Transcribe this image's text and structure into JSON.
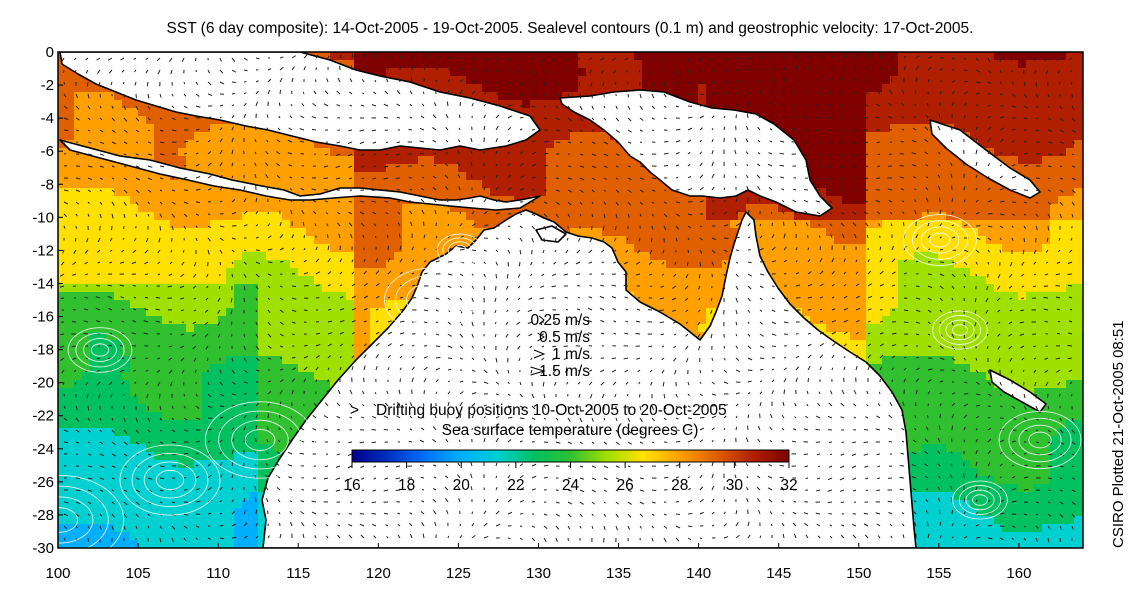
{
  "title": "SST (6 day composite): 14-Oct-2005 - 19-Oct-2005. Sealevel contours (0.1 m) and geostrophic velocity: 17-Oct-2005.",
  "credit": "CSIRO Plotted 21-Oct-2005 08:51",
  "map": {
    "lon_range": [
      100,
      164
    ],
    "lat_range": [
      -30,
      0
    ],
    "x_ticks": [
      {
        "value": 100,
        "label": "100"
      },
      {
        "value": 105,
        "label": "105"
      },
      {
        "value": 110,
        "label": "110"
      },
      {
        "value": 115,
        "label": "115"
      },
      {
        "value": 120,
        "label": "120"
      },
      {
        "value": 125,
        "label": "125"
      },
      {
        "value": 130,
        "label": "130"
      },
      {
        "value": 135,
        "label": "135"
      },
      {
        "value": 140,
        "label": "140"
      },
      {
        "value": 145,
        "label": "145"
      },
      {
        "value": 150,
        "label": "150"
      },
      {
        "value": 155,
        "label": "155"
      },
      {
        "value": 160,
        "label": "160"
      }
    ],
    "y_ticks": [
      {
        "value": 0,
        "label": "0"
      },
      {
        "value": -2,
        "label": "-2"
      },
      {
        "value": -4,
        "label": "-4"
      },
      {
        "value": -6,
        "label": "-6"
      },
      {
        "value": -8,
        "label": "-8"
      },
      {
        "value": -10,
        "label": "-10"
      },
      {
        "value": -12,
        "label": "-12"
      },
      {
        "value": -14,
        "label": "-14"
      },
      {
        "value": -16,
        "label": "-16"
      },
      {
        "value": -18,
        "label": "-18"
      },
      {
        "value": -20,
        "label": "-20"
      },
      {
        "value": -22,
        "label": "-22"
      },
      {
        "value": -24,
        "label": "-24"
      },
      {
        "value": -26,
        "label": "-26"
      },
      {
        "value": -28,
        "label": "-28"
      },
      {
        "value": -30,
        "label": "-30"
      }
    ]
  },
  "velocity_legend": [
    {
      "label": "0.25 m/s",
      "speed": 0.25
    },
    {
      "label": "0.5 m/s",
      "speed": 0.5
    },
    {
      "label": "1 m/s",
      "speed": 1
    },
    {
      "label": "1.5 m/s",
      "speed": 1.5
    }
  ],
  "buoy_legend": {
    "symbol": ">",
    "label": "Drifting buoy positions 10-Oct-2005 to 20-Oct-2005",
    "color": "#e040e0"
  },
  "colorbar": {
    "title": "Sea surface temperature (degrees C)",
    "min": 16,
    "max": 32,
    "ticks": [
      "16",
      "18",
      "20",
      "22",
      "24",
      "26",
      "28",
      "30",
      "32"
    ],
    "colors": [
      "#00008f",
      "#0030c0",
      "#0070ff",
      "#00b0ff",
      "#00d0d0",
      "#00c060",
      "#30c030",
      "#a0e000",
      "#ffe000",
      "#ffa000",
      "#e06000",
      "#b02000",
      "#800000"
    ]
  },
  "land_color": "#ffffff",
  "coastline_color": "#000000"
}
